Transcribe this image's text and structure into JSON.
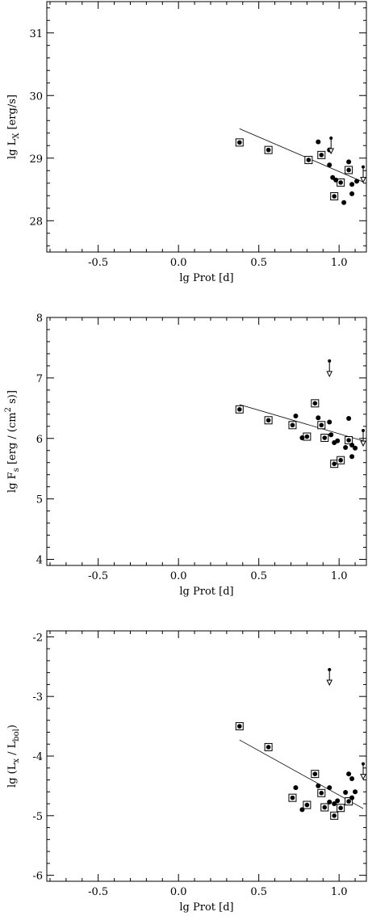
{
  "chart_data": [
    {
      "type": "scatter",
      "xlabel": "lg Prot [d]",
      "ylabel_parts": {
        "base": "lg L",
        "sub": "X",
        "tail": " [erg/s]"
      },
      "xlim": [
        -0.82,
        1.17
      ],
      "ylim": [
        27.5,
        31.5
      ],
      "xticks": [
        -0.5,
        0.0,
        0.5,
        1.0
      ],
      "xtick_labels": [
        "-0.5",
        "0.0",
        "0.5",
        "1.0"
      ],
      "yticks": [
        28,
        29,
        30,
        31
      ],
      "ytick_labels": [
        "28",
        "29",
        "30",
        "31"
      ],
      "fit_line": {
        "x": [
          0.38,
          1.15
        ],
        "y": [
          29.47,
          28.62
        ]
      },
      "squares": [
        [
          0.38,
          29.25
        ],
        [
          0.56,
          29.13
        ],
        [
          0.81,
          28.97
        ],
        [
          0.89,
          29.05
        ],
        [
          0.97,
          28.39
        ],
        [
          1.01,
          28.61
        ],
        [
          1.06,
          28.81
        ]
      ],
      "dots": [
        [
          0.87,
          29.26
        ],
        [
          0.94,
          29.13
        ],
        [
          0.94,
          28.89
        ],
        [
          0.96,
          28.69
        ],
        [
          0.98,
          28.65
        ],
        [
          1.03,
          28.29
        ],
        [
          1.06,
          28.94
        ],
        [
          1.08,
          28.58
        ],
        [
          1.08,
          28.43
        ],
        [
          1.11,
          28.63
        ]
      ],
      "upper_limits": [
        [
          0.95,
          29.32
        ],
        [
          1.15,
          28.86
        ]
      ]
    },
    {
      "type": "scatter",
      "xlabel": "lg Prot [d]",
      "ylabel_parts": {
        "base": "lg F",
        "sub": "s",
        "tail": " [erg / (cm",
        "sup": "2",
        "tail2": " s)]"
      },
      "xlim": [
        -0.82,
        1.17
      ],
      "ylim": [
        3.9,
        8.0
      ],
      "xticks": [
        -0.5,
        0.0,
        0.5,
        1.0
      ],
      "xtick_labels": [
        "-0.5",
        "0.0",
        "0.5",
        "1.0"
      ],
      "yticks": [
        4,
        5,
        6,
        7,
        8
      ],
      "ytick_labels": [
        "4",
        "5",
        "6",
        "7",
        "8"
      ],
      "fit_line": {
        "x": [
          0.38,
          1.15
        ],
        "y": [
          6.56,
          5.96
        ]
      },
      "squares": [
        [
          0.38,
          6.48
        ],
        [
          0.56,
          6.3
        ],
        [
          0.71,
          6.22
        ],
        [
          0.8,
          6.03
        ],
        [
          0.85,
          6.58
        ],
        [
          0.89,
          6.22
        ],
        [
          0.91,
          6.01
        ],
        [
          0.97,
          5.58
        ],
        [
          1.01,
          5.64
        ],
        [
          1.06,
          5.97
        ]
      ],
      "dots": [
        [
          0.73,
          6.37
        ],
        [
          0.77,
          6.01
        ],
        [
          0.87,
          6.34
        ],
        [
          0.94,
          6.27
        ],
        [
          0.95,
          6.06
        ],
        [
          0.97,
          5.93
        ],
        [
          0.99,
          5.96
        ],
        [
          1.04,
          5.85
        ],
        [
          1.06,
          6.33
        ],
        [
          1.08,
          5.89
        ],
        [
          1.08,
          5.7
        ],
        [
          1.1,
          5.84
        ]
      ],
      "upper_limits": [
        [
          0.94,
          7.28
        ],
        [
          1.15,
          6.13
        ]
      ]
    },
    {
      "type": "scatter",
      "xlabel": "lg Prot [d]",
      "ylabel_parts": {
        "base": "lg (L",
        "sub": "x",
        "tail": " / L",
        "sub2": "bol",
        "tail2": ")"
      },
      "xlim": [
        -0.82,
        1.17
      ],
      "ylim": [
        -6.1,
        -1.9
      ],
      "xticks": [
        -0.5,
        0.0,
        0.5,
        1.0
      ],
      "xtick_labels": [
        "-0.5",
        "0.0",
        "0.5",
        "1.0"
      ],
      "yticks": [
        -6,
        -5,
        -4,
        -3,
        -2
      ],
      "ytick_labels": [
        "-6",
        "-5",
        "-4",
        "-3",
        "-2"
      ],
      "fit_line": {
        "x": [
          0.38,
          1.15
        ],
        "y": [
          -3.73,
          -4.88
        ]
      },
      "squares": [
        [
          0.38,
          -3.5
        ],
        [
          0.56,
          -3.85
        ],
        [
          0.71,
          -4.7
        ],
        [
          0.8,
          -4.82
        ],
        [
          0.85,
          -4.3
        ],
        [
          0.89,
          -4.62
        ],
        [
          0.91,
          -4.86
        ],
        [
          0.97,
          -5.0
        ],
        [
          1.01,
          -4.87
        ],
        [
          1.06,
          -4.76
        ]
      ],
      "dots": [
        [
          0.73,
          -4.53
        ],
        [
          0.77,
          -4.9
        ],
        [
          0.87,
          -4.5
        ],
        [
          0.94,
          -4.53
        ],
        [
          0.94,
          -4.77
        ],
        [
          0.97,
          -4.8
        ],
        [
          0.99,
          -4.75
        ],
        [
          1.04,
          -4.61
        ],
        [
          1.06,
          -4.3
        ],
        [
          1.08,
          -4.7
        ],
        [
          1.08,
          -4.38
        ],
        [
          1.1,
          -4.6
        ]
      ],
      "upper_limits": [
        [
          0.94,
          -2.55
        ],
        [
          1.15,
          -4.13
        ]
      ]
    }
  ]
}
